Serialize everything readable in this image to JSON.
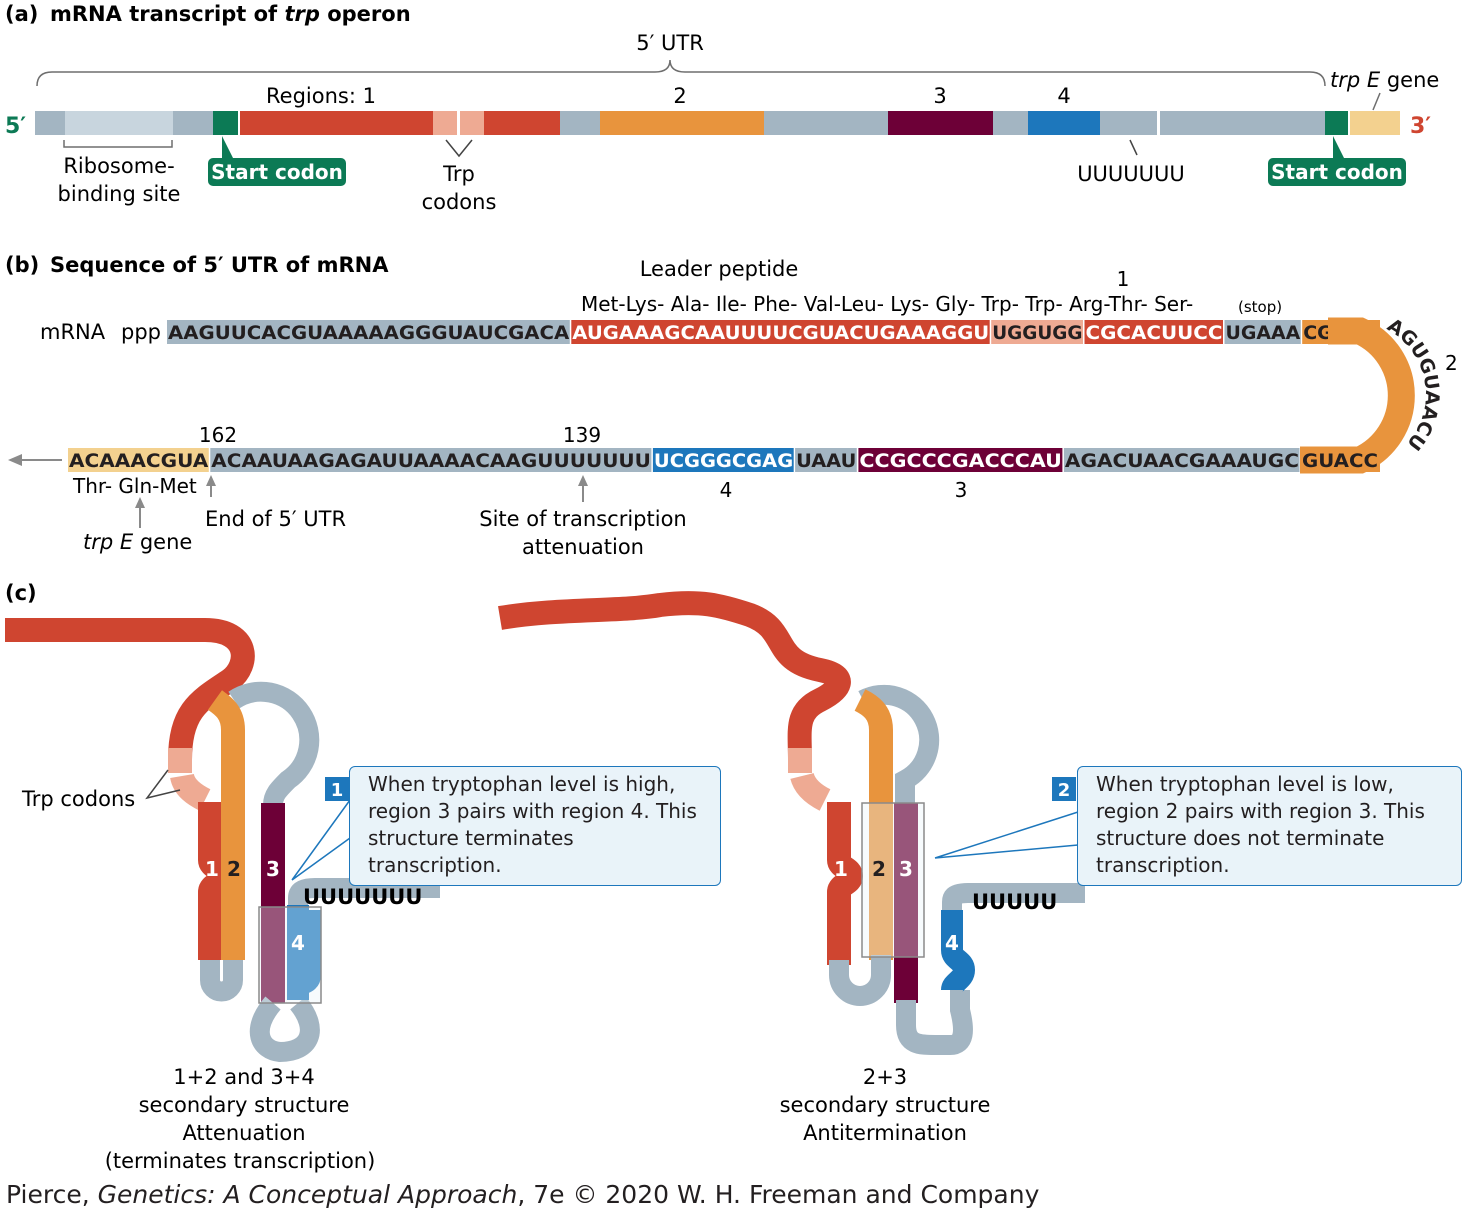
{
  "colors": {
    "grey": "#a3b5c2",
    "light_grey": "#c8d5de",
    "green": "#0c7a55",
    "red": "#cf4530",
    "pink": "#eeaa93",
    "orange": "#e8943d",
    "maroon": "#6d0037",
    "blue": "#1d77bc",
    "tan": "#f3d18f"
  },
  "panel_a": {
    "label": "(a)",
    "title_pre": "mRNA transcript of ",
    "title_italic": "trp",
    "title_post": " operon",
    "utr_label": "5′ UTR",
    "five_prime": "5′",
    "three_prime": "3′",
    "regions_label": "Regions: 1",
    "region2": "2",
    "region3": "3",
    "region4": "4",
    "trpE_italic": "trp E",
    "trpE_post": " gene",
    "ribosome_line1": "Ribosome-",
    "ribosome_line2": "binding site",
    "start_codon_1": "Start codon",
    "start_codon_2": "Start codon",
    "trp_line1": "Trp",
    "trp_line2": "codons",
    "uuu": "UUUUUUU"
  },
  "panel_b": {
    "label": "(b)",
    "title": "Sequence of 5′ UTR of mRNA",
    "leader_peptide": "Leader peptide",
    "num1": "1",
    "num2": "2",
    "num162": "162",
    "num139": "139",
    "num4": "4",
    "num3": "3",
    "amino_acids": "Met-Lys- Ala- Ile- Phe- Val-Leu- Lys- Gly- Trp- Trp- Arg-Thr- Ser-",
    "stop": "(stop)",
    "mrna_label": "mRNA",
    "ppp": "ppp",
    "row1": [
      {
        "text": "AAGUUCACGUAAAAAGGGUAUCGACA",
        "color": "grey"
      },
      {
        "text": "AUGAAAGCAAUUUUCGUACUGAAAGGU",
        "color": "red"
      },
      {
        "text": "UGGUGG",
        "color": "pink"
      },
      {
        "text": "CGCACUUCC",
        "color": "red"
      },
      {
        "text": "UGAAA",
        "color": "grey"
      },
      {
        "text": "CGGGC",
        "color": "orange"
      }
    ],
    "curve_text": "AGUGUAACU",
    "row2": [
      {
        "text": "ACAAACGUA",
        "color": "tan"
      },
      {
        "text": "ACAAUAAGAGAUUAAAACAAGUUUUUUU",
        "color": "grey"
      },
      {
        "text": "UCGGGCGAG",
        "color": "blue"
      },
      {
        "text": "UAAU",
        "color": "grey"
      },
      {
        "text": "CCGCCCGACCCAU",
        "color": "maroon"
      },
      {
        "text": "AGACUAACGAAAUGC",
        "color": "grey"
      },
      {
        "text": "GUACC",
        "color": "orange"
      }
    ],
    "thr_gln_met": "Thr- Gln-Met",
    "end_utr": "End of 5′ UTR",
    "trpE_italic": "trp E",
    "trpE_post": " gene",
    "attenuation_line1": "Site of transcription",
    "attenuation_line2": "attenuation"
  },
  "panel_c": {
    "label": "(c)",
    "trp_codons": "Trp codons",
    "left_1": "1",
    "left_2": "2",
    "left_3": "3",
    "left_4": "4",
    "left_uuu": "UUUUUUU",
    "badge1": "1",
    "callout1": "When tryptophan level is high, region 3 pairs with region 4. This structure terminates transcription.",
    "left_caption": [
      "1+2 and 3+4",
      "secondary structure",
      "Attenuation",
      "(terminates transcription)"
    ],
    "right_1": "1",
    "right_2": "2",
    "right_3": "3",
    "right_4": "4",
    "right_uuu": "UUUUU",
    "badge2": "2",
    "callout2": "When tryptophan level is low, region 2 pairs with region 3. This structure does not terminate transcription.",
    "right_caption": [
      "2+3",
      "secondary structure",
      "Antitermination"
    ]
  },
  "credit": {
    "pre": "Pierce, ",
    "italic": "Genetics: A Conceptual Approach",
    "post": ", 7e © 2020 W. H. Freeman and Company"
  }
}
